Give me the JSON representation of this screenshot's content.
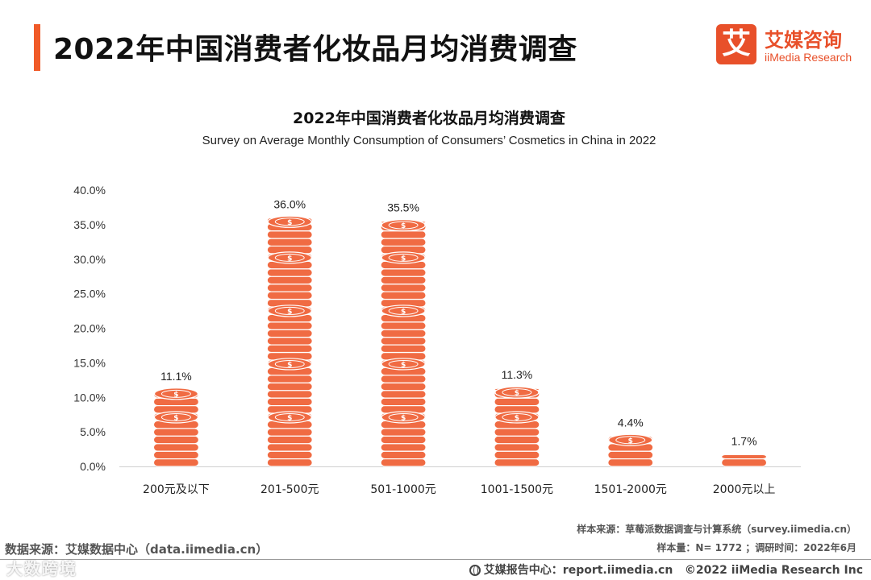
{
  "header": {
    "title": "2022年中国消费者化妆品月均消费调查",
    "accent_color": "#f05a28"
  },
  "logo": {
    "mark": "艾",
    "cn": "艾媒咨询",
    "en": "iiMedia Research",
    "color": "#e8502a"
  },
  "footer": {
    "source_right": "样本来源：草莓派数据调查与计算系统（survey.iimedia.cn）",
    "sample_right": "样本量：N= 1772 ；调研时间：2022年6月",
    "source_left": "数据来源：艾媒数据中心（data.iimedia.cn）",
    "report_label": "艾媒报告中心：report.iimedia.cn",
    "copyright": "©2022  iiMedia Research  Inc",
    "watermark": "大数跨境"
  },
  "chart_data": {
    "type": "bar",
    "title": "2022年中国消费者化妆品月均消费调查",
    "subtitle": "Survey on Average Monthly Consumption of Consumers’  Cosmetics in China in 2022",
    "categories": [
      "200元及以下",
      "201-500元",
      "501-1000元",
      "1001-1500元",
      "1501-2000元",
      "2000元以上"
    ],
    "values": [
      11.1,
      36.0,
      35.5,
      11.3,
      4.4,
      1.7
    ],
    "value_labels": [
      "11.1%",
      "36.0%",
      "35.5%",
      "11.3%",
      "4.4%",
      "1.7%"
    ],
    "ylim": [
      0,
      40
    ],
    "y_ticks": [
      "0.0%",
      "5.0%",
      "10.0%",
      "15.0%",
      "20.0%",
      "25.0%",
      "30.0%",
      "35.0%",
      "40.0%"
    ],
    "grid": false,
    "bar_style": "stacked coins",
    "colors": {
      "coin": "#f06b43",
      "coin_edge": "#ffffff",
      "axis": "#d0d0d0"
    }
  }
}
